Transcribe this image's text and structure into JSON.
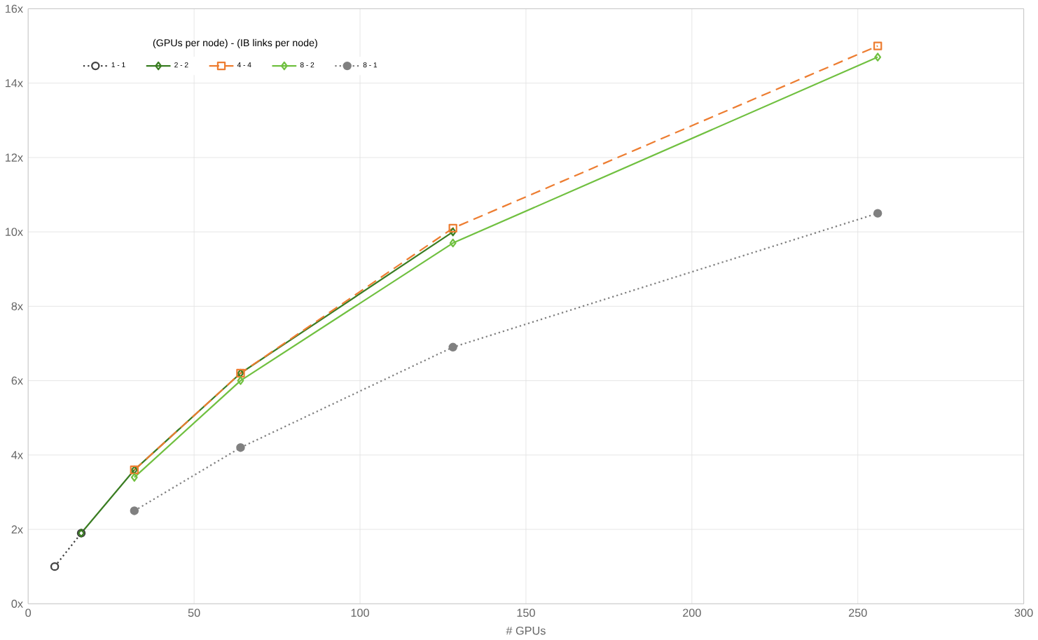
{
  "chart_data": {
    "type": "line",
    "xlabel": "# GPUs",
    "legend_title": "(GPUs per node) - (IB links per node)",
    "legend": "top",
    "grid": true,
    "xlim": [
      0,
      300
    ],
    "xticks": [
      0,
      50,
      100,
      150,
      200,
      250,
      300
    ],
    "ylim": [
      0,
      16
    ],
    "yticks": [
      {
        "value": 0,
        "label": "0x"
      },
      {
        "value": 2,
        "label": "2x"
      },
      {
        "value": 4,
        "label": "4x"
      },
      {
        "value": 6,
        "label": "6x"
      },
      {
        "value": 8,
        "label": "8x"
      },
      {
        "value": 10,
        "label": "10x"
      },
      {
        "value": 12,
        "label": "12x"
      },
      {
        "value": 14,
        "label": "14x"
      },
      {
        "value": 16,
        "label": "16x"
      }
    ],
    "series": [
      {
        "name": "1 - 1",
        "color": "#404040",
        "marker": "circle",
        "line_style": "dotted",
        "x": [
          8,
          16
        ],
        "values": [
          1.0,
          1.9
        ]
      },
      {
        "name": "2 - 2",
        "color": "#3a7d22",
        "marker": "diamond",
        "line_style": "solid",
        "x": [
          16,
          32,
          64,
          128
        ],
        "values": [
          1.9,
          3.6,
          6.2,
          10.0
        ]
      },
      {
        "name": "4 - 4",
        "color": "#ed7d31",
        "marker": "square",
        "line_style": "dashed",
        "x": [
          32,
          64,
          128,
          256
        ],
        "values": [
          3.6,
          6.2,
          10.1,
          15.0
        ]
      },
      {
        "name": "8 - 2",
        "color": "#70c040",
        "marker": "diamond",
        "line_style": "solid",
        "x": [
          32,
          64,
          128,
          256
        ],
        "values": [
          3.4,
          6.0,
          9.7,
          14.7
        ]
      },
      {
        "name": "8 - 1",
        "color": "#808080",
        "marker": "circle",
        "line_style": "dotted",
        "x": [
          32,
          64,
          128,
          256
        ],
        "values": [
          2.5,
          4.2,
          6.9,
          10.5
        ]
      }
    ]
  }
}
